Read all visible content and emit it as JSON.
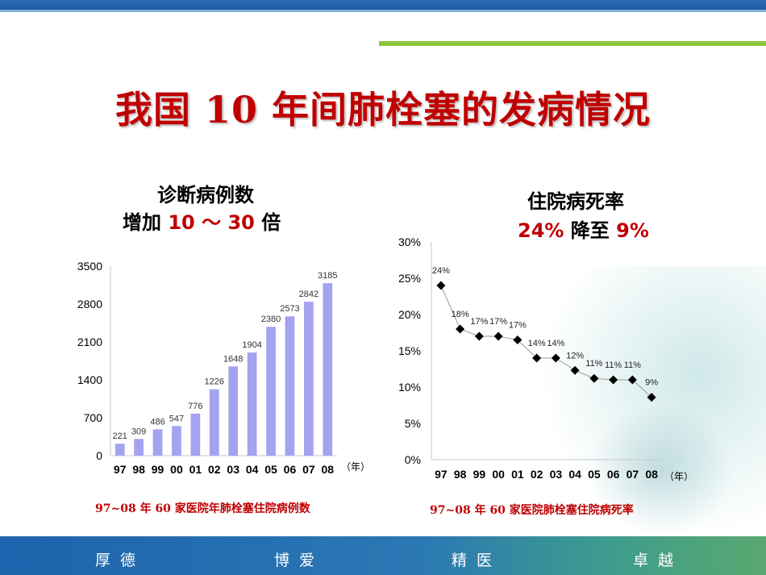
{
  "title": "我国 10 年间肺栓塞的发病情况",
  "left": {
    "heading_line1": "诊断病例数",
    "heading_line2_prefix": "增加 ",
    "heading_line2_highlight": "10 ～ 30",
    "heading_line2_suffix": " 倍",
    "caption": "97~08 年 60 家医院年肺栓塞住院病例数"
  },
  "right": {
    "heading_line1": "住院病死率",
    "heading_line2_a": "24%",
    "heading_line2_mid": " 降至 ",
    "heading_line2_b": "9%",
    "caption": "97~08 年 60 家医院肺栓塞住院病死率"
  },
  "chart_data": [
    {
      "type": "bar",
      "categories": [
        "97",
        "98",
        "99",
        "00",
        "01",
        "02",
        "03",
        "04",
        "05",
        "06",
        "07",
        "08"
      ],
      "values": [
        221,
        309,
        486,
        547,
        776,
        1226,
        1648,
        1904,
        2380,
        2573,
        2842,
        3185
      ],
      "data_labels": [
        "221",
        "309",
        "486",
        "547",
        "776",
        "1226",
        "1648",
        "1904",
        "2380",
        "2573",
        "2842",
        "3185"
      ],
      "yticks": [
        "0",
        "700",
        "1400",
        "2100",
        "2800",
        "3500"
      ],
      "ylim": [
        0,
        3500
      ],
      "xlabel": "（年）",
      "bar_color": "#a3a3f0",
      "grid": false
    },
    {
      "type": "line",
      "categories": [
        "97",
        "98",
        "99",
        "00",
        "01",
        "02",
        "03",
        "04",
        "05",
        "06",
        "07",
        "08"
      ],
      "values": [
        24,
        18,
        17,
        17,
        16.5,
        14,
        14,
        12.3,
        11.2,
        11,
        11,
        8.6
      ],
      "data_labels": [
        "24%",
        "18%",
        "17%",
        "17%",
        "17%",
        "14%",
        "14%",
        "12%",
        "11%",
        "11%",
        "11%",
        "9%"
      ],
      "yticks": [
        "0%",
        "5%",
        "10%",
        "15%",
        "20%",
        "25%",
        "30%"
      ],
      "ylim": [
        0,
        30
      ],
      "xlabel": "（年）",
      "marker": "diamond",
      "grid": false
    }
  ],
  "footer": {
    "motto": [
      "厚德",
      "博爱",
      "精医",
      "卓越"
    ]
  }
}
